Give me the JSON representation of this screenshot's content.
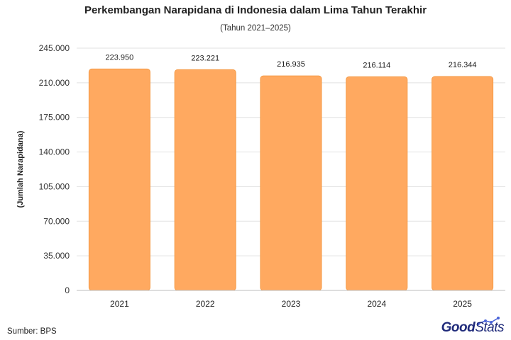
{
  "chart_data": {
    "type": "bar",
    "title": "Perkembangan Narapidana di Indonesia dalam Lima Tahun Terakhir",
    "subtitle": "(Tahun 2021–2025)",
    "ylabel": "(Jumlah Narapidana)",
    "xlabel": "",
    "categories": [
      "2021",
      "2022",
      "2023",
      "2024",
      "2025"
    ],
    "values": [
      223950,
      223221,
      216935,
      216114,
      216344
    ],
    "data_labels": [
      "223.950",
      "223.221",
      "216.935",
      "216.114",
      "216.344"
    ],
    "ylim": [
      0,
      245000
    ],
    "yticks": [
      0,
      35000,
      70000,
      105000,
      140000,
      175000,
      210000,
      245000
    ],
    "ytick_labels": [
      "0",
      "35.000",
      "70.000",
      "105.000",
      "140.000",
      "175.000",
      "210.000",
      "245.000"
    ],
    "grid": true,
    "legend": "none",
    "bar_color": "#ffa960",
    "bar_edge_color": "#f59a45"
  },
  "footer": {
    "source": "Sumber: BPS",
    "brand_good": "Good",
    "brand_stats": "Stats"
  }
}
